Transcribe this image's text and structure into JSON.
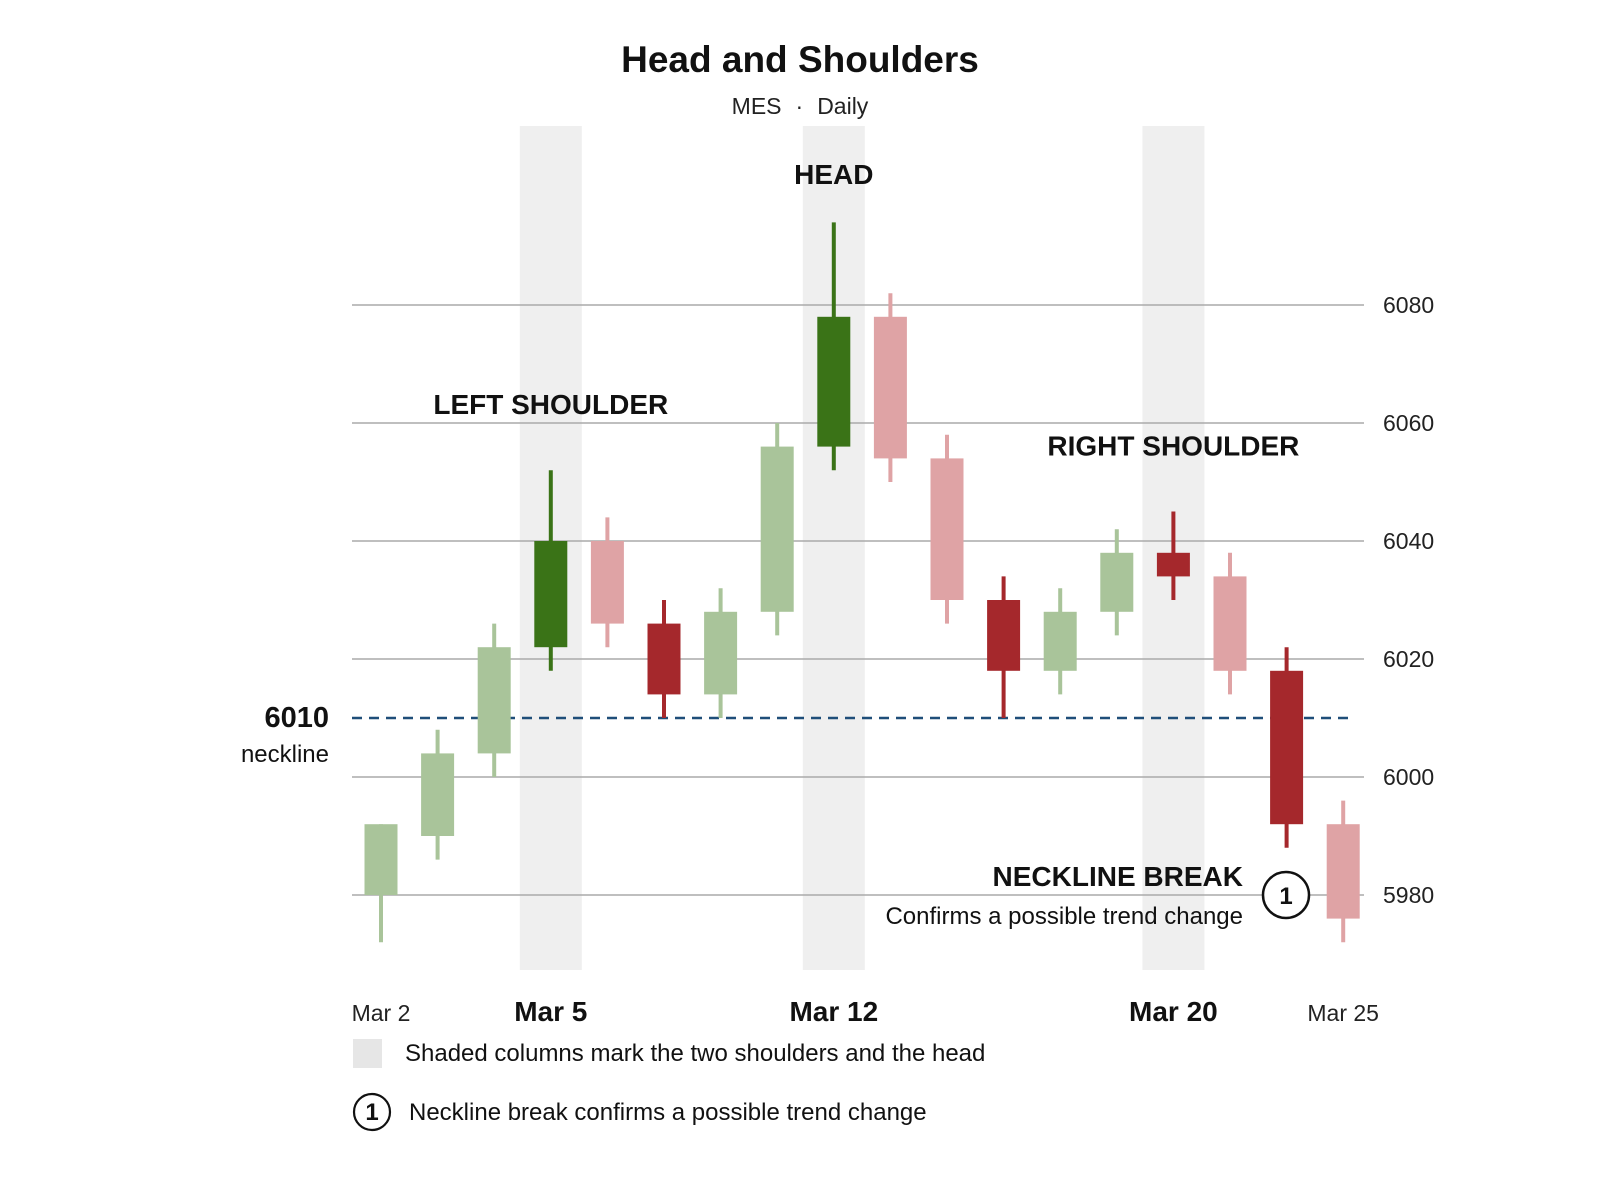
{
  "chart_data": {
    "type": "candlestick",
    "title": "Head and Shoulders",
    "subtitle_symbol": "MES",
    "subtitle_separator": "·",
    "subtitle_interval": "Daily",
    "ylim": [
      5966,
      6102
    ],
    "yticks": [
      5980,
      6000,
      6020,
      6040,
      6060,
      6080
    ],
    "grid": true,
    "neckline": {
      "value": 6010,
      "label": "6010",
      "sublabel": "neckline",
      "color": "#1f4e79"
    },
    "colors": {
      "up": "#3a7317",
      "down": "#a5282c",
      "up_faded": "#a9c49a",
      "down_faded": "#dfa3a5",
      "shade": "#efefef",
      "grid": "#aaaaaa"
    },
    "candles": [
      {
        "open": 5980,
        "high": 5992,
        "low": 5972,
        "close": 5992,
        "faded": true
      },
      {
        "open": 5990,
        "high": 6008,
        "low": 5986,
        "close": 6004,
        "faded": true
      },
      {
        "open": 6004,
        "high": 6026,
        "low": 6000,
        "close": 6022,
        "faded": true
      },
      {
        "open": 6022,
        "high": 6052,
        "low": 6018,
        "close": 6040,
        "faded": false
      },
      {
        "open": 6040,
        "high": 6044,
        "low": 6022,
        "close": 6026,
        "faded": true
      },
      {
        "open": 6026,
        "high": 6030,
        "low": 6010,
        "close": 6014,
        "faded": false
      },
      {
        "open": 6014,
        "high": 6032,
        "low": 6010,
        "close": 6028,
        "faded": true
      },
      {
        "open": 6028,
        "high": 6060,
        "low": 6024,
        "close": 6056,
        "faded": true
      },
      {
        "open": 6056,
        "high": 6094,
        "low": 6052,
        "close": 6078,
        "faded": false
      },
      {
        "open": 6078,
        "high": 6082,
        "low": 6050,
        "close": 6054,
        "faded": true
      },
      {
        "open": 6054,
        "high": 6058,
        "low": 6026,
        "close": 6030,
        "faded": true
      },
      {
        "open": 6030,
        "high": 6034,
        "low": 6010,
        "close": 6018,
        "faded": false
      },
      {
        "open": 6018,
        "high": 6032,
        "low": 6014,
        "close": 6028,
        "faded": true
      },
      {
        "open": 6028,
        "high": 6042,
        "low": 6024,
        "close": 6038,
        "faded": true
      },
      {
        "open": 6038,
        "high": 6045,
        "low": 6030,
        "close": 6034,
        "faded": false
      },
      {
        "open": 6034,
        "high": 6038,
        "low": 6014,
        "close": 6018,
        "faded": true
      },
      {
        "open": 6018,
        "high": 6022,
        "low": 5988,
        "close": 5992,
        "faded": false
      },
      {
        "open": 5992,
        "high": 5996,
        "low": 5972,
        "close": 5976,
        "faded": true
      }
    ],
    "x_labels": [
      {
        "index": 0,
        "text": "Mar 2",
        "major": false
      },
      {
        "index": 3,
        "text": "Mar 5",
        "major": true
      },
      {
        "index": 8,
        "text": "Mar 12",
        "major": true
      },
      {
        "index": 14,
        "text": "Mar 20",
        "major": true
      },
      {
        "index": 17,
        "text": "Mar 25",
        "major": false
      }
    ],
    "shaded_columns": [
      3,
      8,
      14
    ],
    "annotations": [
      {
        "index": 3,
        "text": "LEFT SHOULDER",
        "value": 6061.5
      },
      {
        "index": 8,
        "text": "HEAD",
        "value": 6100.5
      },
      {
        "index": 14,
        "text": "RIGHT SHOULDER",
        "value": 6054.5
      }
    ],
    "neckline_break": {
      "index": 16,
      "title": "NECKLINE BREAK",
      "text": "Confirms a possible trend change",
      "marker": "1"
    },
    "legend": [
      {
        "kind": "shade",
        "text": "Shaded columns mark the two shoulders and the head"
      },
      {
        "kind": "marker",
        "marker": "1",
        "text": "Neckline break confirms a possible trend change"
      }
    ]
  }
}
